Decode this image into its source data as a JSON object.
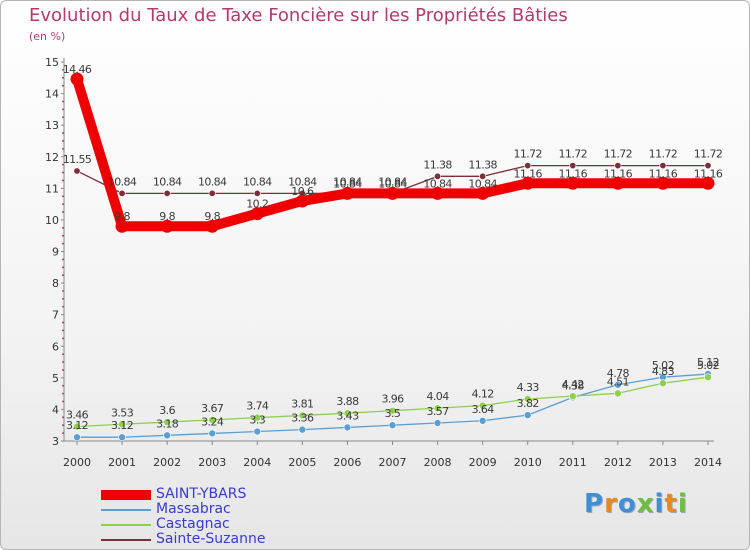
{
  "chart_data": {
    "type": "line",
    "title": "Evolution du Taux de Taxe Foncière sur les Propriétés Bâties",
    "subtitle": "(en %)",
    "x": [
      2000,
      2001,
      2002,
      2003,
      2004,
      2005,
      2006,
      2007,
      2008,
      2009,
      2010,
      2011,
      2012,
      2013,
      2014
    ],
    "ylim": [
      3,
      15
    ],
    "yticks": [
      3,
      4,
      5,
      6,
      7,
      8,
      9,
      10,
      11,
      12,
      13,
      14,
      15
    ],
    "series": [
      {
        "name": "SAINT-YBARS",
        "color": "#ee0000",
        "values": [
          14.46,
          9.8,
          9.8,
          9.8,
          10.2,
          10.6,
          10.84,
          10.84,
          10.84,
          10.84,
          11.16,
          11.16,
          11.16,
          11.16,
          11.16
        ],
        "labels": [
          "14.46",
          "9.8",
          "9.8",
          "9.8",
          "10.2",
          "10.6",
          "10.84",
          "10.84",
          "10.84",
          "10.84",
          "11.16",
          "11.16",
          "11.16",
          "11.16",
          "11.16"
        ]
      },
      {
        "name": "Massabrac",
        "color": "#5a9fd4",
        "values": [
          3.12,
          3.12,
          3.18,
          3.24,
          3.3,
          3.36,
          3.43,
          3.5,
          3.57,
          3.64,
          3.82,
          4.38,
          4.78,
          5.02,
          5.12
        ],
        "labels": [
          "3.12",
          "3.12",
          "3.18",
          "3.24",
          "3.3",
          "3.36",
          "3.43",
          "3.5",
          "3.57",
          "3.64",
          "3.82",
          "4.38",
          "4.78",
          "5.02",
          "5.12"
        ]
      },
      {
        "name": "Castagnac",
        "color": "#8ed04c",
        "values": [
          3.46,
          3.53,
          3.6,
          3.67,
          3.74,
          3.81,
          3.88,
          3.96,
          4.04,
          4.12,
          4.33,
          4.42,
          4.51,
          4.83,
          5.02
        ],
        "labels": [
          "3.46",
          "3.53",
          "3.6",
          "3.67",
          "3.74",
          "3.81",
          "3.88",
          "3.96",
          "4.04",
          "4.12",
          "4.33",
          "4.42",
          "4.51",
          "4.83",
          "5.02"
        ]
      },
      {
        "name": "Sainte-Suzanne",
        "color": "#7a3038",
        "values": [
          11.55,
          10.84,
          10.84,
          10.84,
          10.84,
          10.84,
          10.84,
          10.84,
          11.38,
          11.38,
          11.72,
          11.72,
          11.72,
          11.72,
          11.72
        ],
        "labels": [
          "11.55",
          "10.84",
          "10.84",
          "10.84",
          "10.84",
          "10.84",
          "10.84",
          "10.84",
          "11.38",
          "11.38",
          "11.72",
          "11.72",
          "11.72",
          "11.72",
          "11.72"
        ]
      }
    ],
    "legend": "bottom-left"
  },
  "logo": {
    "text": "Proxiti",
    "colors": [
      "#3f8fd6",
      "#e58a1f",
      "#3f8fd6",
      "#6fbf3a",
      "#3f8fd6",
      "#e58a1f",
      "#6fbf3a"
    ]
  }
}
